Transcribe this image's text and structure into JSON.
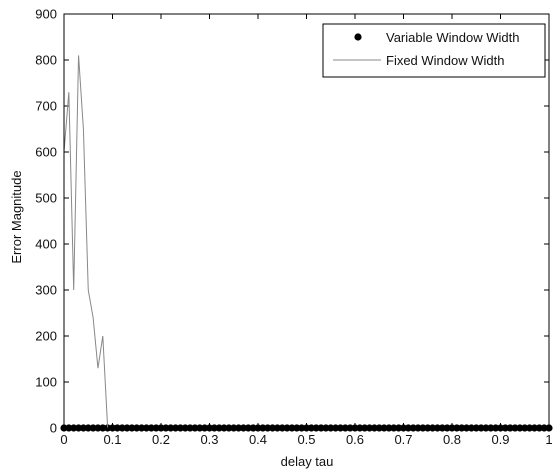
{
  "chart_data": {
    "type": "line",
    "xlabel": "delay tau",
    "ylabel": "Error Magnitude",
    "xlim": [
      0,
      1
    ],
    "ylim": [
      0,
      900
    ],
    "xticks": [
      "0",
      "0.1",
      "0.2",
      "0.3",
      "0.4",
      "0.5",
      "0.6",
      "0.7",
      "0.8",
      "0.9",
      "1"
    ],
    "yticks": [
      "0",
      "100",
      "200",
      "300",
      "400",
      "500",
      "600",
      "700",
      "800",
      "900"
    ],
    "grid": false,
    "legend_position": "top-right",
    "series": [
      {
        "name": "Variable Window Width",
        "style": "markers",
        "color": "#000000",
        "x": [
          0.0,
          0.01,
          0.02,
          0.03,
          0.04,
          0.05,
          0.06,
          0.07,
          0.08,
          0.09,
          0.1,
          0.11,
          0.12,
          0.13,
          0.14,
          0.15,
          0.16,
          0.17,
          0.18,
          0.19,
          0.2,
          0.21,
          0.22,
          0.23,
          0.24,
          0.25,
          0.26,
          0.27,
          0.28,
          0.29,
          0.3,
          0.31,
          0.32,
          0.33,
          0.34,
          0.35,
          0.36,
          0.37,
          0.38,
          0.39,
          0.4,
          0.41,
          0.42,
          0.43,
          0.44,
          0.45,
          0.46,
          0.47,
          0.48,
          0.49,
          0.5,
          0.51,
          0.52,
          0.53,
          0.54,
          0.55,
          0.56,
          0.57,
          0.58,
          0.59,
          0.6,
          0.61,
          0.62,
          0.63,
          0.64,
          0.65,
          0.66,
          0.67,
          0.68,
          0.69,
          0.7,
          0.71,
          0.72,
          0.73,
          0.74,
          0.75,
          0.76,
          0.77,
          0.78,
          0.79,
          0.8,
          0.81,
          0.82,
          0.83,
          0.84,
          0.85,
          0.86,
          0.87,
          0.88,
          0.89,
          0.9,
          0.91,
          0.92,
          0.93,
          0.94,
          0.95,
          0.96,
          0.97,
          0.98,
          0.99,
          1.0
        ],
        "y": [
          0,
          0,
          0,
          0,
          0,
          0,
          0,
          0,
          0,
          0,
          0,
          0,
          0,
          0,
          0,
          0,
          0,
          0,
          0,
          0,
          0,
          0,
          0,
          0,
          0,
          0,
          0,
          0,
          0,
          0,
          0,
          0,
          0,
          0,
          0,
          0,
          0,
          0,
          0,
          0,
          0,
          0,
          0,
          0,
          0,
          0,
          0,
          0,
          0,
          0,
          0,
          0,
          0,
          0,
          0,
          0,
          0,
          0,
          0,
          0,
          0,
          0,
          0,
          0,
          0,
          0,
          0,
          0,
          0,
          0,
          0,
          0,
          0,
          0,
          0,
          0,
          0,
          0,
          0,
          0,
          0,
          0,
          0,
          0,
          0,
          0,
          0,
          0,
          0,
          0,
          0,
          0,
          0,
          0,
          0,
          0,
          0,
          0,
          0,
          0,
          0
        ]
      },
      {
        "name": "Fixed Window Width",
        "style": "line",
        "color": "#888888",
        "x": [
          0.0,
          0.01,
          0.02,
          0.03,
          0.04,
          0.05,
          0.06,
          0.07,
          0.08,
          0.09,
          0.1,
          1.0
        ],
        "y": [
          600,
          730,
          300,
          810,
          650,
          300,
          240,
          130,
          200,
          0,
          0,
          0
        ]
      }
    ]
  }
}
